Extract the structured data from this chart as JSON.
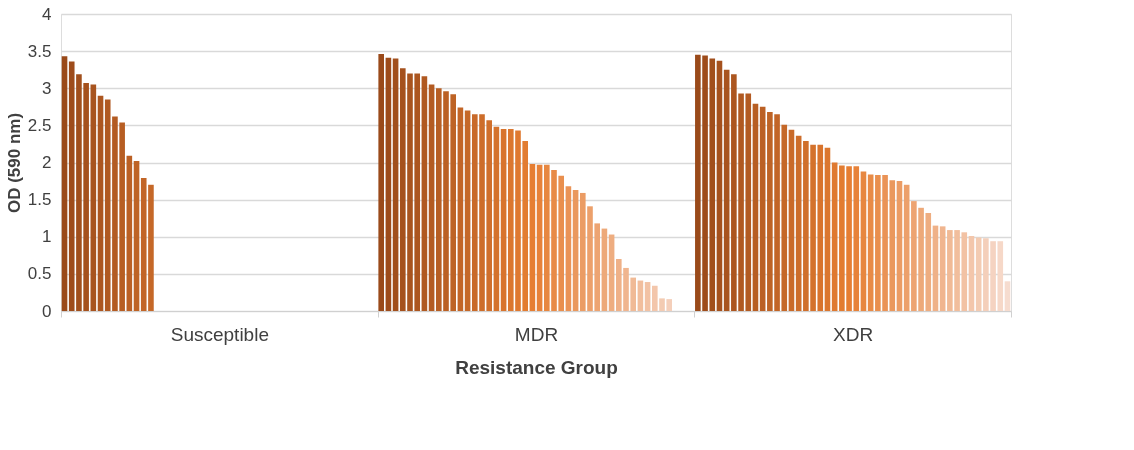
{
  "chart_data": {
    "type": "bar",
    "xlabel": "Resistance Group",
    "ylabel": "OD (590 nm)",
    "categories": [
      "Susceptible",
      "MDR",
      "XDR"
    ],
    "ylim": [
      0,
      4
    ],
    "yticks": [
      0,
      0.5,
      1,
      1.5,
      2,
      2.5,
      3,
      3.5,
      4
    ],
    "grid": "y",
    "legend": false,
    "series": [
      {
        "color": "#9a4a1a",
        "values": [
          3.43,
          3.46,
          3.45
        ]
      },
      {
        "color": "#9e4c1b",
        "values": [
          3.36,
          3.41,
          3.44
        ]
      },
      {
        "color": "#a14f1c",
        "values": [
          3.19,
          3.4,
          3.4
        ]
      },
      {
        "color": "#a5511d",
        "values": [
          3.07,
          3.27,
          3.37
        ]
      },
      {
        "color": "#a8541f",
        "values": [
          3.05,
          3.2,
          3.25
        ]
      },
      {
        "color": "#ac5620",
        "values": [
          2.9,
          3.2,
          3.19
        ]
      },
      {
        "color": "#b05921",
        "values": [
          2.85,
          3.16,
          2.93
        ]
      },
      {
        "color": "#b35b22",
        "values": [
          2.62,
          3.05,
          2.93
        ]
      },
      {
        "color": "#b75e23",
        "values": [
          2.54,
          3.0,
          2.79
        ]
      },
      {
        "color": "#bb6024",
        "values": [
          2.09,
          2.96,
          2.75
        ]
      },
      {
        "color": "#be6325",
        "values": [
          2.02,
          2.92,
          2.68
        ]
      },
      {
        "color": "#c26527",
        "values": [
          1.79,
          2.74,
          2.65
        ]
      },
      {
        "color": "#c56828",
        "values": [
          1.7,
          2.7,
          2.51
        ]
      },
      {
        "color": "#c96a29",
        "values": [
          null,
          2.65,
          2.44
        ]
      },
      {
        "color": "#cd6d2a",
        "values": [
          null,
          2.65,
          2.36
        ]
      },
      {
        "color": "#d06f2b",
        "values": [
          null,
          2.57,
          2.29
        ]
      },
      {
        "color": "#d4722c",
        "values": [
          null,
          2.48,
          2.24
        ]
      },
      {
        "color": "#d8742d",
        "values": [
          null,
          2.45,
          2.24
        ]
      },
      {
        "color": "#db772f",
        "values": [
          null,
          2.45,
          2.2
        ]
      },
      {
        "color": "#df7930",
        "values": [
          null,
          2.43,
          2.0
        ]
      },
      {
        "color": "#e27c31",
        "values": [
          null,
          2.29,
          1.96
        ]
      },
      {
        "color": "#e67e32",
        "values": [
          null,
          1.98,
          1.95
        ]
      },
      {
        "color": "#e78239",
        "values": [
          null,
          1.97,
          1.95
        ]
      },
      {
        "color": "#e78740",
        "values": [
          null,
          1.97,
          1.88
        ]
      },
      {
        "color": "#e88b47",
        "values": [
          null,
          1.9,
          1.84
        ]
      },
      {
        "color": "#e98f4e",
        "values": [
          null,
          1.82,
          1.83
        ]
      },
      {
        "color": "#ea9356",
        "values": [
          null,
          1.68,
          1.83
        ]
      },
      {
        "color": "#ea985d",
        "values": [
          null,
          1.63,
          1.76
        ]
      },
      {
        "color": "#eb9c64",
        "values": [
          null,
          1.59,
          1.75
        ]
      },
      {
        "color": "#eca06b",
        "values": [
          null,
          1.41,
          1.7
        ]
      },
      {
        "color": "#eda472",
        "values": [
          null,
          1.18,
          1.48
        ]
      },
      {
        "color": "#eda979",
        "values": [
          null,
          1.11,
          1.39
        ]
      },
      {
        "color": "#eead80",
        "values": [
          null,
          1.03,
          1.32
        ]
      },
      {
        "color": "#efb188",
        "values": [
          null,
          0.7,
          1.15
        ]
      },
      {
        "color": "#f0b58f",
        "values": [
          null,
          0.58,
          1.14
        ]
      },
      {
        "color": "#f0ba96",
        "values": [
          null,
          0.45,
          1.09
        ]
      },
      {
        "color": "#f1be9d",
        "values": [
          null,
          0.41,
          1.09
        ]
      },
      {
        "color": "#f2c2a4",
        "values": [
          null,
          0.39,
          1.06
        ]
      },
      {
        "color": "#f3c6ab",
        "values": [
          null,
          0.34,
          1.01
        ]
      },
      {
        "color": "#f3cbb2",
        "values": [
          null,
          0.17,
          0.99
        ]
      },
      {
        "color": "#f4cfba",
        "values": [
          null,
          0.16,
          0.98
        ]
      },
      {
        "color": "#f5d3c1",
        "values": [
          null,
          null,
          0.94
        ]
      },
      {
        "color": "#f6d8c8",
        "values": [
          null,
          null,
          0.94
        ]
      },
      {
        "color": "#f6dccf",
        "values": [
          null,
          null,
          0.4
        ]
      }
    ]
  }
}
